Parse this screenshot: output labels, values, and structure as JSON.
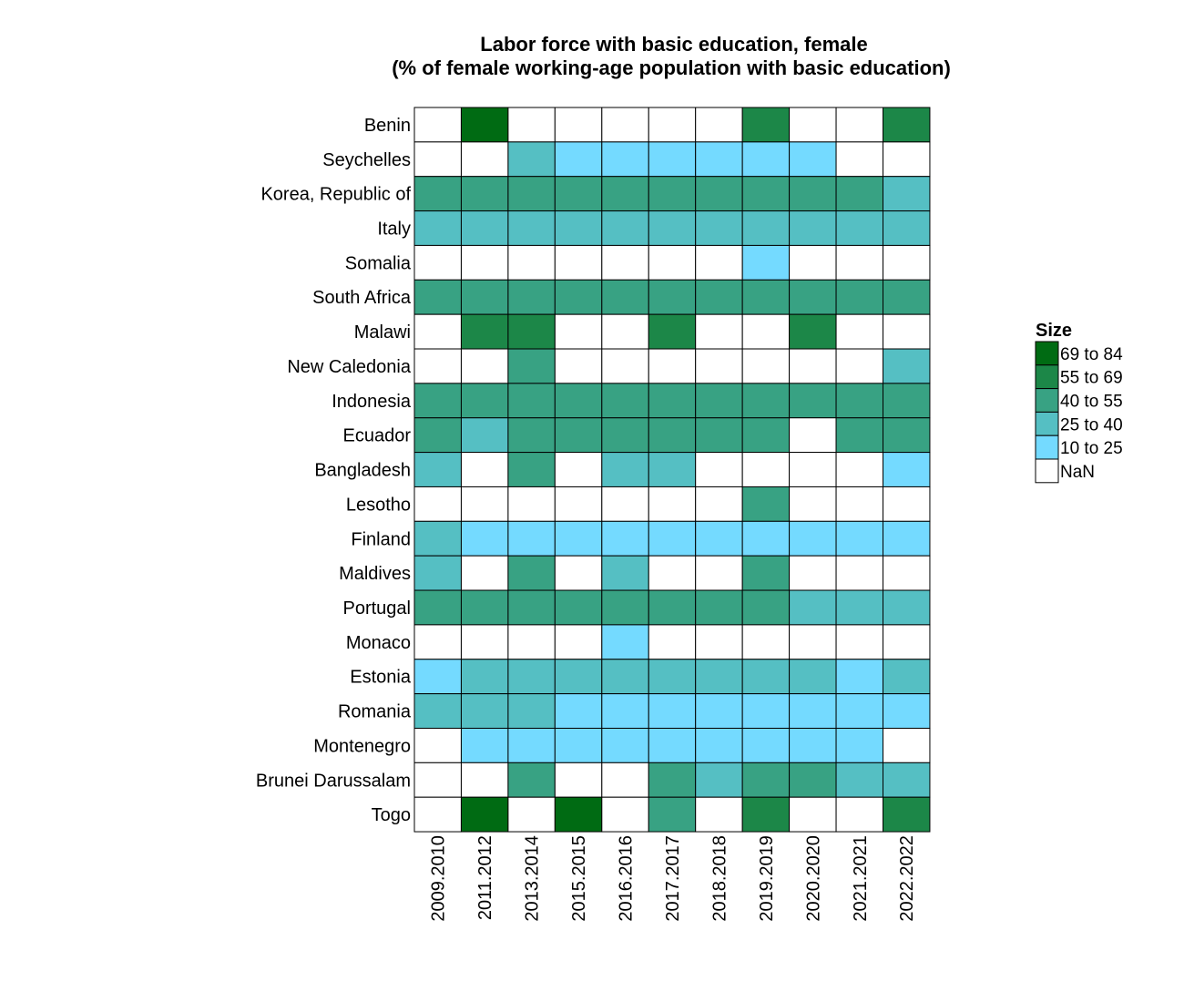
{
  "chart_data": {
    "type": "heatmap",
    "title_lines": [
      "Labor force with basic education, female",
      "(% of female working-age population with basic education)"
    ],
    "x": [
      "2009.2010",
      "2011.2012",
      "2013.2014",
      "2015.2015",
      "2016.2016",
      "2017.2017",
      "2018.2018",
      "2019.2019",
      "2020.2020",
      "2021.2021",
      "2022.2022"
    ],
    "y": [
      "Benin",
      "Seychelles",
      "Korea, Republic of",
      "Italy",
      "Somalia",
      "South Africa",
      "Malawi",
      "New Caledonia",
      "Indonesia",
      "Ecuador",
      "Bangladesh",
      "Lesotho",
      "Finland",
      "Maldives",
      "Portugal",
      "Monaco",
      "Estonia",
      "Romania",
      "Montenegro",
      "Brunei Darussalam",
      "Togo"
    ],
    "values": [
      [
        null,
        74,
        null,
        null,
        null,
        null,
        null,
        62,
        null,
        null,
        62
      ],
      [
        null,
        null,
        32,
        18,
        18,
        18,
        18,
        18,
        18,
        null,
        null
      ],
      [
        47,
        47,
        47,
        47,
        47,
        47,
        47,
        47,
        47,
        47,
        32
      ],
      [
        32,
        32,
        32,
        32,
        32,
        32,
        32,
        32,
        32,
        32,
        32
      ],
      [
        null,
        null,
        null,
        null,
        null,
        null,
        null,
        18,
        null,
        null,
        null
      ],
      [
        47,
        47,
        47,
        47,
        47,
        47,
        47,
        47,
        47,
        47,
        47
      ],
      [
        null,
        62,
        62,
        null,
        null,
        62,
        null,
        null,
        62,
        null,
        null
      ],
      [
        null,
        null,
        47,
        null,
        null,
        null,
        null,
        null,
        null,
        null,
        32
      ],
      [
        47,
        47,
        47,
        47,
        47,
        47,
        47,
        47,
        47,
        47,
        47
      ],
      [
        47,
        32,
        47,
        47,
        47,
        47,
        47,
        47,
        null,
        47,
        47
      ],
      [
        32,
        null,
        47,
        null,
        32,
        32,
        null,
        null,
        null,
        null,
        18
      ],
      [
        null,
        null,
        null,
        null,
        null,
        null,
        null,
        47,
        null,
        null,
        null
      ],
      [
        32,
        18,
        18,
        18,
        18,
        18,
        18,
        18,
        18,
        18,
        18
      ],
      [
        32,
        null,
        47,
        null,
        32,
        null,
        null,
        47,
        null,
        null,
        null
      ],
      [
        47,
        47,
        47,
        47,
        47,
        47,
        47,
        47,
        32,
        32,
        32
      ],
      [
        null,
        null,
        null,
        null,
        18,
        null,
        null,
        null,
        null,
        null,
        null
      ],
      [
        18,
        32,
        32,
        32,
        32,
        32,
        32,
        32,
        32,
        18,
        32
      ],
      [
        32,
        32,
        32,
        18,
        18,
        18,
        18,
        18,
        18,
        18,
        18
      ],
      [
        null,
        18,
        18,
        18,
        18,
        18,
        18,
        18,
        18,
        18,
        null
      ],
      [
        null,
        null,
        47,
        null,
        null,
        47,
        32,
        47,
        47,
        32,
        32
      ],
      [
        null,
        74,
        null,
        74,
        null,
        47,
        null,
        62,
        null,
        null,
        62
      ]
    ],
    "legend": {
      "title": "Size",
      "position": "right",
      "bins": [
        {
          "label": "69 to 84",
          "min": 69,
          "max": 84,
          "color": "#006b13"
        },
        {
          "label": "55 to 69",
          "min": 55,
          "max": 69,
          "color": "#1c8748"
        },
        {
          "label": "40 to 55",
          "min": 40,
          "max": 55,
          "color": "#38a283"
        },
        {
          "label": "25 to 40",
          "min": 25,
          "max": 40,
          "color": "#55bfc3"
        },
        {
          "label": "10 to 25",
          "min": 10,
          "max": 25,
          "color": "#74daff"
        },
        {
          "label": "NaN",
          "min": null,
          "max": null,
          "color": "#ffffff"
        }
      ]
    }
  }
}
